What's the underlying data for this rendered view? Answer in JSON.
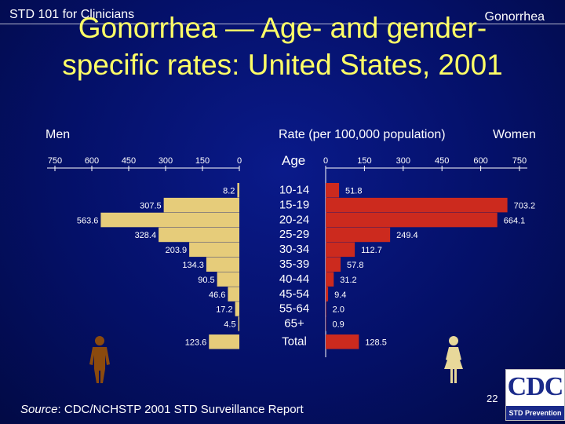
{
  "header": {
    "left": "STD 101 for Clinicians",
    "right": "Gonorrhea"
  },
  "title": "Gonorrhea — Age- and gender-specific rates: United States, 2001",
  "labels": {
    "men": "Men",
    "women": "Women",
    "rate": "Rate (per 100,000 population)",
    "age": "Age"
  },
  "colors": {
    "men_bar": "#e6cc7a",
    "women_bar": "#cc2a1e",
    "title": "#ffff66",
    "background": "#041068"
  },
  "chart_data": {
    "type": "bar",
    "orientation": "horizontal-butterfly",
    "title": "Gonorrhea — Age- and gender-specific rates: United States, 2001",
    "xlabel": "Rate (per 100,000 population)",
    "ylabel": "Age",
    "xlim": [
      0,
      750
    ],
    "ticks": [
      "750",
      "600",
      "450",
      "300",
      "150",
      "0"
    ],
    "women_ticks": [
      "0",
      "150",
      "300",
      "450",
      "600",
      "750"
    ],
    "categories": [
      "10-14",
      "15-19",
      "20-24",
      "25-29",
      "30-34",
      "35-39",
      "40-44",
      "45-54",
      "55-64",
      "65+",
      "Total"
    ],
    "series": [
      {
        "name": "Men",
        "values": [
          8.2,
          307.5,
          563.6,
          328.4,
          203.9,
          134.3,
          90.5,
          46.6,
          17.2,
          4.5,
          123.6
        ],
        "labels": [
          "8.2",
          "307.5",
          "563.6",
          "328.4",
          "203.9",
          "134.3",
          "90.5",
          "46.6",
          "17.2",
          "4.5",
          "123.6"
        ]
      },
      {
        "name": "Women",
        "values": [
          51.8,
          703.2,
          664.1,
          249.4,
          112.7,
          57.8,
          31.2,
          9.4,
          2.0,
          0.9,
          128.5
        ],
        "labels": [
          "51.8",
          "703.2",
          "664.1",
          "249.4",
          "112.7",
          "57.8",
          "31.2",
          "9.4",
          "2.0",
          "0.9",
          "128.5"
        ]
      }
    ]
  },
  "icons": {
    "male": "male-figure-icon",
    "female": "female-figure-icon"
  },
  "footer": {
    "source_prefix": "Source",
    "source_text": ": CDC/NCHSTP 2001 STD Surveillance Report",
    "page_number": "22",
    "logo_text": "CDC",
    "logo_tagline": "STD Prevention"
  }
}
